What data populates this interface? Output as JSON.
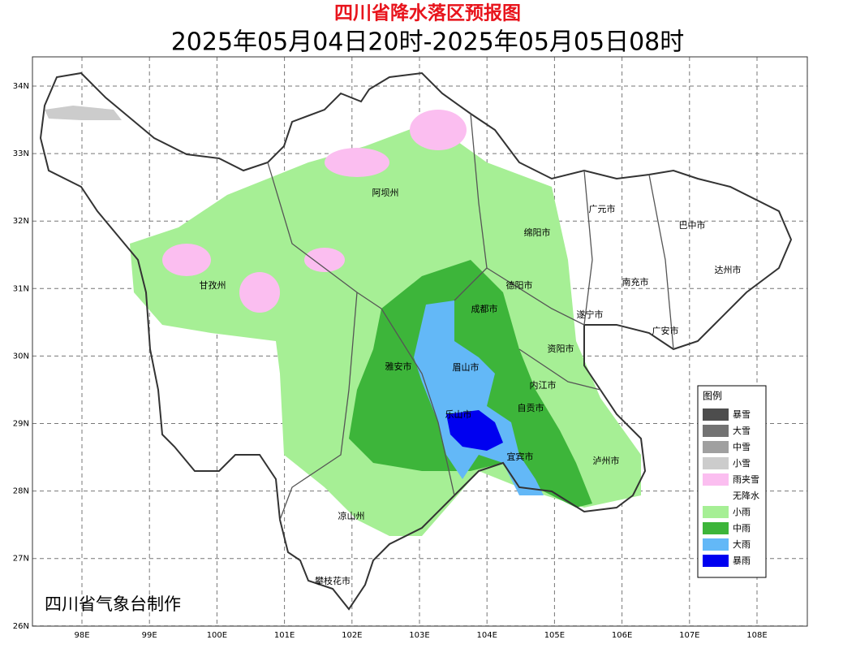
{
  "header": {
    "title": "四川省降水落区预报图",
    "subtitle": "2025年05月04日20时-2025年05月05日08时"
  },
  "map": {
    "lon_ticks": [
      "98E",
      "99E",
      "100E",
      "101E",
      "102E",
      "103E",
      "104E",
      "105E",
      "106E",
      "107E",
      "108E"
    ],
    "lat_ticks": [
      "34N",
      "33N",
      "32N",
      "31N",
      "30N",
      "29N",
      "28N",
      "27N",
      "26N"
    ],
    "cities": [
      "阿坝州",
      "广元市",
      "巴中市",
      "绵阳市",
      "达州市",
      "德阳市",
      "甘孜州",
      "南充市",
      "成都市",
      "遂宁市",
      "广安市",
      "资阳市",
      "雅安市",
      "眉山市",
      "内江市",
      "自贡市",
      "乐山市",
      "宜宾市",
      "泸州市",
      "凉山州",
      "攀枝花市"
    ],
    "credit": "四川省气象台制作"
  },
  "legend": {
    "title": "图例",
    "items": [
      {
        "label": "暴雪",
        "color": "#4d4d4d"
      },
      {
        "label": "大雪",
        "color": "#737373"
      },
      {
        "label": "中雪",
        "color": "#a0a0a0"
      },
      {
        "label": "小雪",
        "color": "#cccccc"
      },
      {
        "label": "雨夹雪",
        "color": "#fbbef0"
      },
      {
        "label": "无降水",
        "color": "#ffffff"
      },
      {
        "label": "小雨",
        "color": "#a6ef95"
      },
      {
        "label": "中雨",
        "color": "#3db53a"
      },
      {
        "label": "大雨",
        "color": "#63b8f7"
      },
      {
        "label": "暴雨",
        "color": "#0000f0"
      }
    ]
  }
}
